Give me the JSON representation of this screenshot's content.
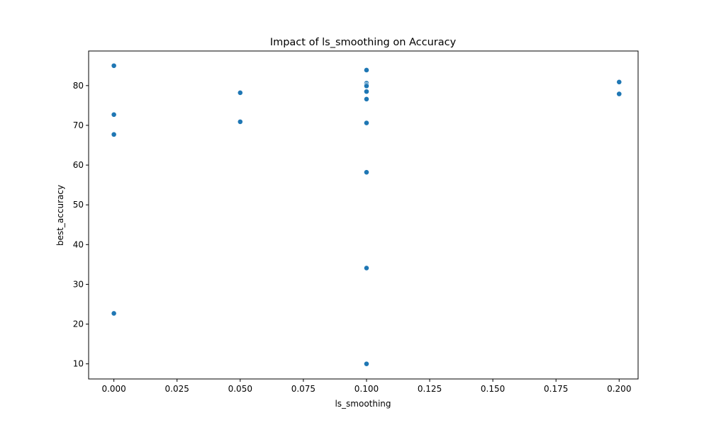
{
  "chart_data": {
    "type": "scatter",
    "title": "Impact of ls_smoothing on Accuracy",
    "xlabel": "ls_smoothing",
    "ylabel": "best_accuracy",
    "xlim": [
      -0.01,
      0.2075
    ],
    "ylim": [
      6.2,
      88.7
    ],
    "xticks": [
      0.0,
      0.025,
      0.05,
      0.075,
      0.1,
      0.125,
      0.15,
      0.175,
      0.2
    ],
    "xtick_labels": [
      "0.000",
      "0.025",
      "0.050",
      "0.075",
      "0.100",
      "0.125",
      "0.150",
      "0.175",
      "0.200"
    ],
    "yticks": [
      10,
      20,
      30,
      40,
      50,
      60,
      70,
      80
    ],
    "ytick_labels": [
      "10",
      "20",
      "30",
      "40",
      "50",
      "60",
      "70",
      "80"
    ],
    "grid": false,
    "marker_color": "#1f77b4",
    "points": [
      {
        "x": 0.0,
        "y": 85.0
      },
      {
        "x": 0.0,
        "y": 72.7
      },
      {
        "x": 0.0,
        "y": 67.7
      },
      {
        "x": 0.0,
        "y": 22.7
      },
      {
        "x": 0.05,
        "y": 78.2
      },
      {
        "x": 0.05,
        "y": 70.9
      },
      {
        "x": 0.1,
        "y": 83.9
      },
      {
        "x": 0.1,
        "y": 80.6
      },
      {
        "x": 0.1,
        "y": 80.2
      },
      {
        "x": 0.1,
        "y": 79.9
      },
      {
        "x": 0.1,
        "y": 78.5
      },
      {
        "x": 0.1,
        "y": 76.6
      },
      {
        "x": 0.1,
        "y": 70.6
      },
      {
        "x": 0.1,
        "y": 58.2
      },
      {
        "x": 0.1,
        "y": 34.1
      },
      {
        "x": 0.1,
        "y": 10.0
      },
      {
        "x": 0.2,
        "y": 80.9
      },
      {
        "x": 0.2,
        "y": 77.9
      }
    ]
  }
}
